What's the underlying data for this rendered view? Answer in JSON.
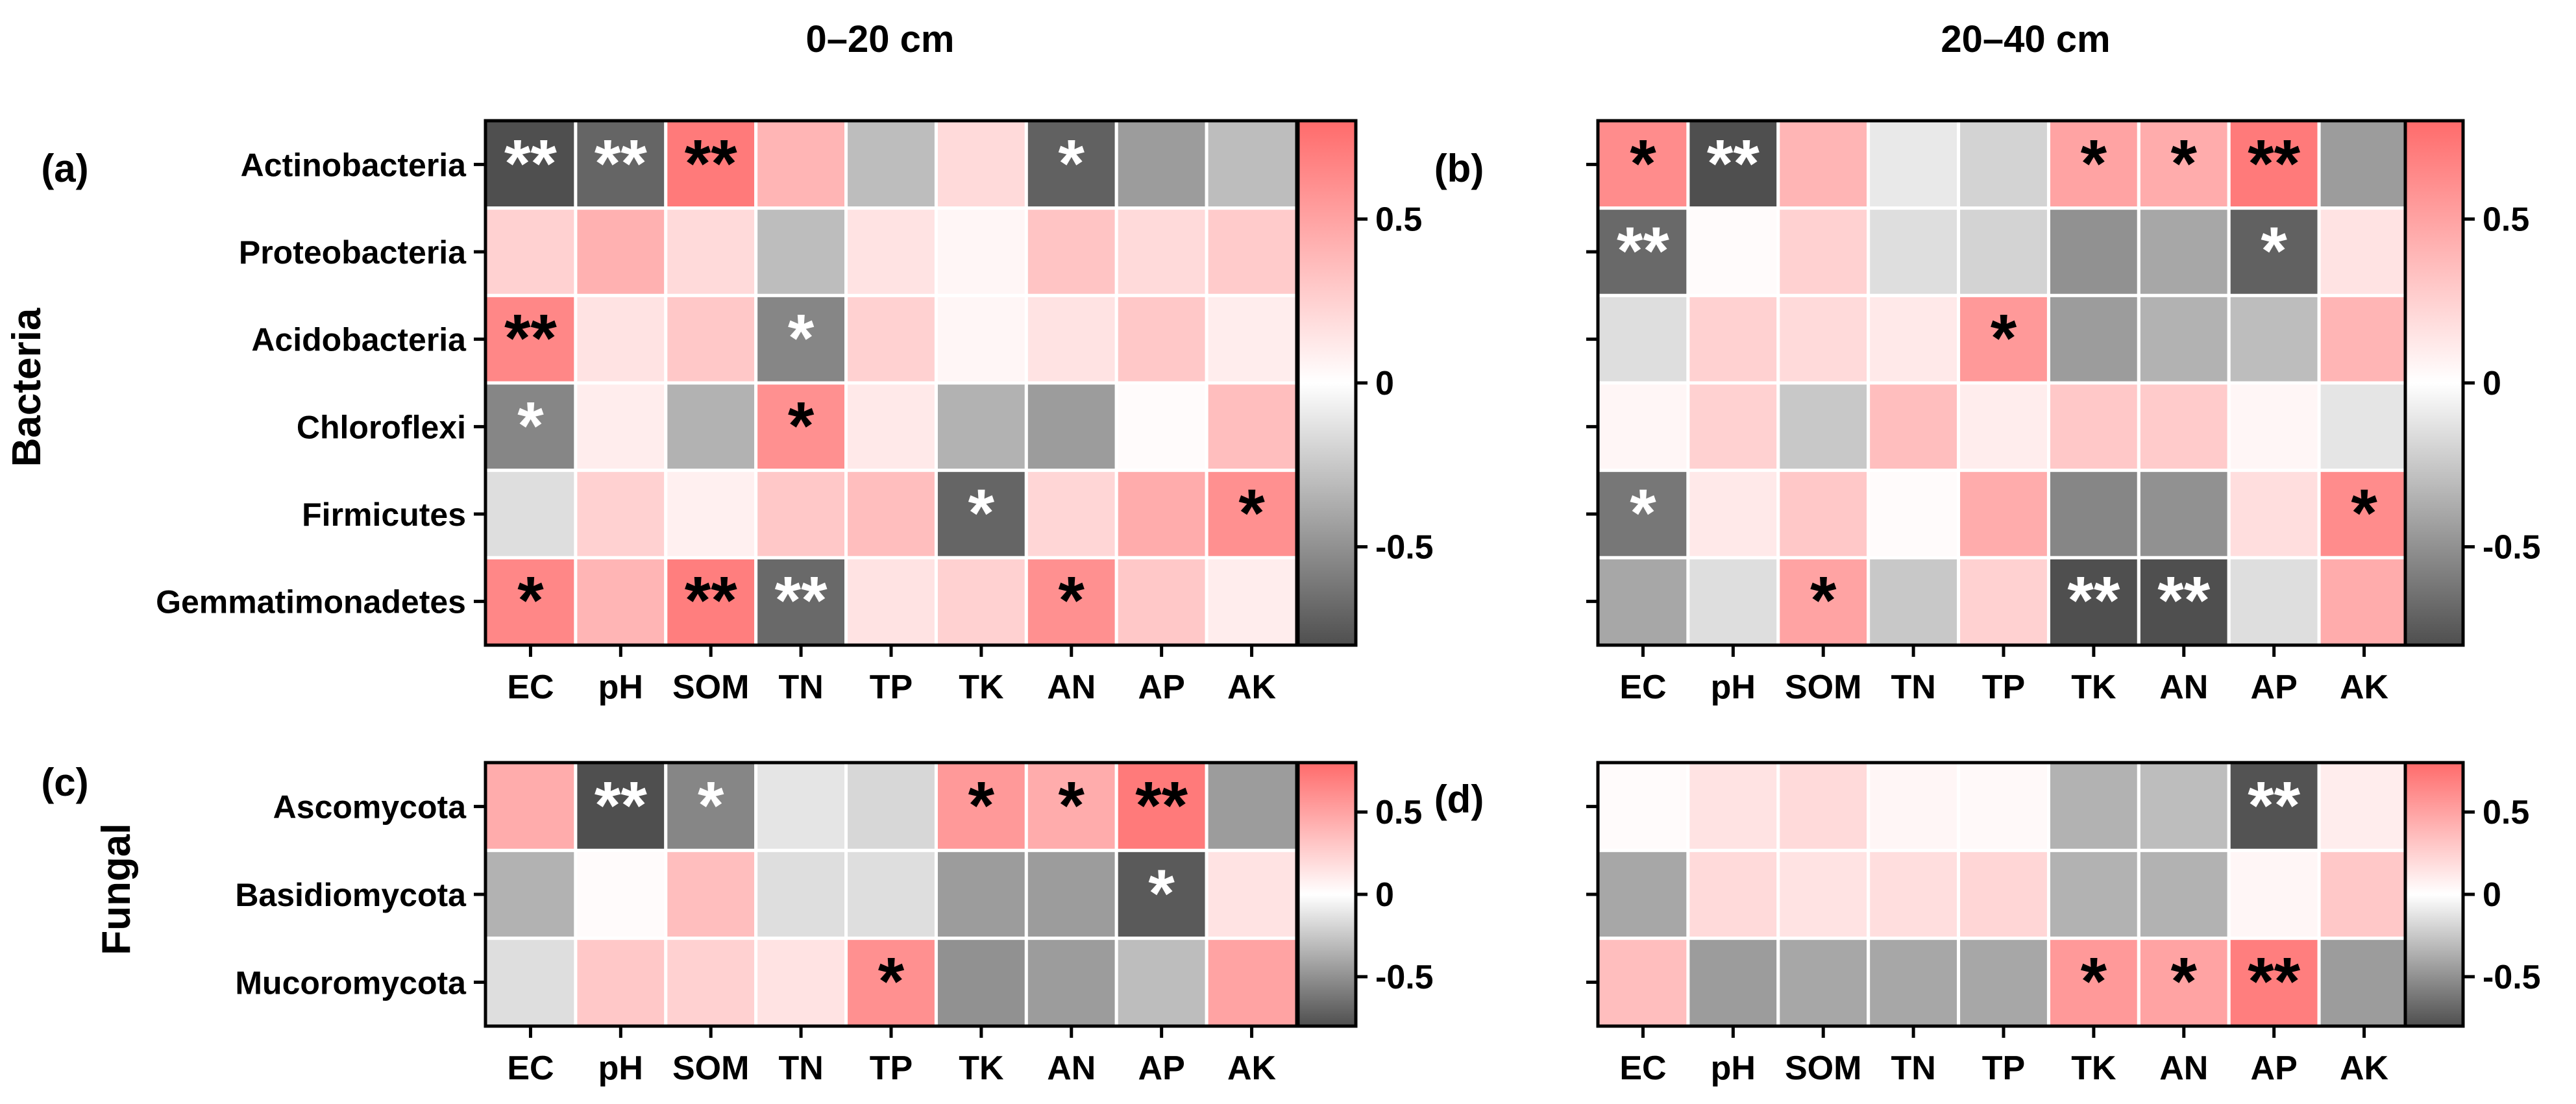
{
  "column_titles": [
    "0–20 cm",
    "20–40 cm"
  ],
  "group_labels": {
    "bacteria": "Bacteria",
    "fungal": "Fungal"
  },
  "colors": {
    "low": "#4f4f4f",
    "mid": "#ffffff",
    "high": "#ff6b6b",
    "grid": "#ffffff",
    "frame": "#000000",
    "star_dark": "#000000",
    "star_light": "#ffffff"
  },
  "chart_data": [
    {
      "type": "heatmap",
      "panel": "(a)",
      "group": "Bacteria",
      "depth": "0–20 cm",
      "rows": [
        "Actinobacteria",
        "Proteobacteria",
        "Acidobacteria",
        "Chloroflexi",
        "Firmicutes",
        "Gemmatimonadetes"
      ],
      "columns": [
        "EC",
        "pH",
        "SOM",
        "TN",
        "TP",
        "TK",
        "AN",
        "AP",
        "AK"
      ],
      "values": [
        [
          -0.85,
          -0.7,
          0.72,
          0.4,
          -0.3,
          0.2,
          -0.72,
          -0.45,
          -0.3
        ],
        [
          0.25,
          0.42,
          0.2,
          -0.3,
          0.15,
          0.05,
          0.32,
          0.2,
          0.28
        ],
        [
          0.65,
          0.15,
          0.3,
          -0.55,
          0.25,
          0.05,
          0.15,
          0.3,
          0.1
        ],
        [
          -0.55,
          0.1,
          -0.35,
          0.6,
          0.12,
          -0.35,
          -0.45,
          0.02,
          0.35
        ],
        [
          -0.15,
          0.25,
          0.08,
          0.3,
          0.35,
          -0.7,
          0.22,
          0.45,
          0.6
        ],
        [
          0.65,
          0.4,
          0.7,
          -0.68,
          0.15,
          0.25,
          0.6,
          0.3,
          0.1
        ]
      ],
      "significance": [
        [
          "**",
          "**",
          "**",
          "",
          "",
          "",
          "*",
          "",
          ""
        ],
        [
          "",
          "",
          "",
          "",
          "",
          "",
          "",
          "",
          ""
        ],
        [
          "**",
          "",
          "",
          "*",
          "",
          "",
          "",
          "",
          ""
        ],
        [
          "*",
          "",
          "",
          "*",
          "",
          "",
          "",
          "",
          ""
        ],
        [
          "",
          "",
          "",
          "",
          "",
          "*",
          "",
          "",
          "*"
        ],
        [
          "*",
          "",
          "**",
          "**",
          "",
          "",
          "*",
          "",
          ""
        ]
      ],
      "colorbar": {
        "range": [
          -0.8,
          0.8
        ],
        "ticks": [
          0.5,
          0,
          -0.5
        ],
        "tick_labels": [
          "0.5",
          "0",
          "-0.5"
        ]
      }
    },
    {
      "type": "heatmap",
      "panel": "(b)",
      "group": "Bacteria",
      "depth": "20–40 cm",
      "rows": [
        "Actinobacteria",
        "Proteobacteria",
        "Acidobacteria",
        "Chloroflexi",
        "Firmicutes",
        "Gemmatimonadetes"
      ],
      "columns": [
        "EC",
        "pH",
        "SOM",
        "TN",
        "TP",
        "TK",
        "AN",
        "AP",
        "AK"
      ],
      "values": [
        [
          0.62,
          -0.8,
          0.4,
          -0.1,
          -0.2,
          0.5,
          0.45,
          0.72,
          -0.45
        ],
        [
          -0.68,
          0.02,
          0.25,
          -0.15,
          -0.2,
          -0.5,
          -0.4,
          -0.72,
          0.15
        ],
        [
          -0.15,
          0.25,
          0.2,
          0.12,
          0.55,
          -0.45,
          -0.35,
          -0.3,
          0.4
        ],
        [
          0.05,
          0.25,
          -0.25,
          0.35,
          0.1,
          0.3,
          0.28,
          0.05,
          -0.12
        ],
        [
          -0.62,
          0.12,
          0.3,
          0.02,
          0.45,
          -0.55,
          -0.5,
          0.18,
          0.62
        ],
        [
          -0.4,
          -0.15,
          0.5,
          -0.25,
          0.25,
          -0.8,
          -0.8,
          -0.15,
          0.45
        ]
      ],
      "significance": [
        [
          "*",
          "**",
          "",
          "",
          "",
          "*",
          "*",
          "**",
          ""
        ],
        [
          "**",
          "",
          "",
          "",
          "",
          "",
          "",
          "*",
          ""
        ],
        [
          "",
          "",
          "",
          "",
          "*",
          "",
          "",
          "",
          ""
        ],
        [
          "",
          "",
          "",
          "",
          "",
          "",
          "",
          "",
          ""
        ],
        [
          "*",
          "",
          "",
          "",
          "",
          "",
          "",
          "",
          "*"
        ],
        [
          "",
          "",
          "*",
          "",
          "",
          "**",
          "**",
          "",
          ""
        ]
      ],
      "colorbar": {
        "range": [
          -0.8,
          0.8
        ],
        "ticks": [
          0.5,
          0,
          -0.5
        ],
        "tick_labels": [
          "0.5",
          "0",
          "-0.5"
        ]
      }
    },
    {
      "type": "heatmap",
      "panel": "(c)",
      "group": "Fungal",
      "depth": "0–20 cm",
      "rows": [
        "Ascomycota",
        "Basidiomycota",
        "Mucoromycota"
      ],
      "columns": [
        "EC",
        "pH",
        "SOM",
        "TN",
        "TP",
        "TK",
        "AN",
        "AP",
        "AK"
      ],
      "values": [
        [
          0.45,
          -0.8,
          -0.55,
          -0.12,
          -0.18,
          0.55,
          0.45,
          0.72,
          -0.45
        ],
        [
          -0.35,
          0.02,
          0.35,
          -0.15,
          -0.15,
          -0.45,
          -0.45,
          -0.75,
          0.15
        ],
        [
          -0.15,
          0.3,
          0.25,
          0.15,
          0.6,
          -0.5,
          -0.45,
          -0.3,
          0.5
        ]
      ],
      "significance": [
        [
          "",
          "**",
          "*",
          "",
          "",
          "*",
          "*",
          "**",
          ""
        ],
        [
          "",
          "",
          "",
          "",
          "",
          "",
          "",
          "*",
          ""
        ],
        [
          "",
          "",
          "",
          "",
          "*",
          "",
          "",
          "",
          ""
        ]
      ],
      "colorbar": {
        "range": [
          -0.8,
          0.8
        ],
        "ticks": [
          0.5,
          0,
          -0.5
        ],
        "tick_labels": [
          "0.5",
          "0",
          "-0.5"
        ]
      }
    },
    {
      "type": "heatmap",
      "panel": "(d)",
      "group": "Fungal",
      "depth": "20–40 cm",
      "rows": [
        "Ascomycota",
        "Basidiomycota",
        "Mucoromycota"
      ],
      "columns": [
        "EC",
        "pH",
        "SOM",
        "TN",
        "TP",
        "TK",
        "AN",
        "AP",
        "AK"
      ],
      "values": [
        [
          0.02,
          0.15,
          0.2,
          0.05,
          0.03,
          -0.35,
          -0.3,
          -0.78,
          0.1
        ],
        [
          -0.4,
          0.2,
          0.15,
          0.18,
          0.22,
          -0.35,
          -0.35,
          0.05,
          0.3
        ],
        [
          0.35,
          -0.45,
          -0.4,
          -0.4,
          -0.4,
          0.55,
          0.5,
          0.7,
          -0.45
        ]
      ],
      "significance": [
        [
          "",
          "",
          "",
          "",
          "",
          "",
          "",
          "**",
          ""
        ],
        [
          "",
          "",
          "",
          "",
          "",
          "",
          "",
          "",
          ""
        ],
        [
          "",
          "",
          "",
          "",
          "",
          "*",
          "*",
          "**",
          ""
        ]
      ],
      "colorbar": {
        "range": [
          -0.8,
          0.8
        ],
        "ticks": [
          0.5,
          0,
          -0.5
        ],
        "tick_labels": [
          "0.5",
          "0",
          "-0.5"
        ]
      }
    }
  ]
}
